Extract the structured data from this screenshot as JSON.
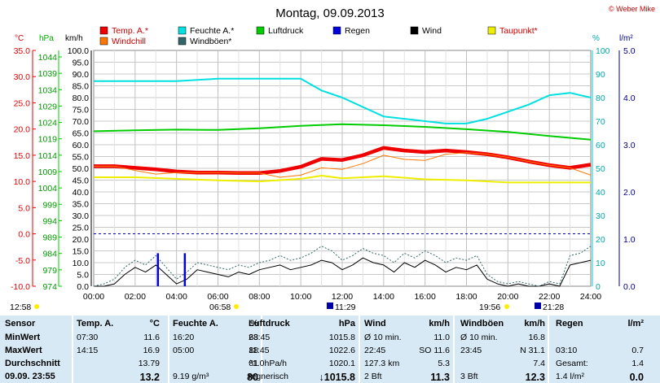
{
  "chart_data": {
    "type": "line",
    "title": "Montag, 09.09.2013",
    "credit": "© Weber Mike",
    "units_left": [
      "°C",
      "hPa",
      "km/h"
    ],
    "units_right": [
      "%",
      "l/m²"
    ],
    "temp_ticks": [
      "35.0",
      "30.0",
      "25.0",
      "20.0",
      "15.0",
      "10.0",
      "5.0",
      "0.0",
      "-5.0",
      "-10.0"
    ],
    "hpa_ticks": [
      "1044",
      "1039",
      "1034",
      "1029",
      "1024",
      "1019",
      "1014",
      "1009",
      "1004",
      "999",
      "994",
      "989",
      "984",
      "979",
      "974"
    ],
    "kmh_ticks": [
      "100.0",
      "95.0",
      "90.0",
      "85.0",
      "80.0",
      "75.0",
      "70.0",
      "65.0",
      "60.0",
      "55.0",
      "50.0",
      "45.0",
      "40.0",
      "35.0",
      "30.0",
      "25.0",
      "20.0",
      "15.0",
      "10.0",
      "5.0",
      "0.0"
    ],
    "pct_ticks": [
      "100",
      "90",
      "80",
      "70",
      "60",
      "50",
      "40",
      "30",
      "20",
      "10",
      "0"
    ],
    "rain_ticks": [
      "5.0",
      "4.0",
      "3.0",
      "2.0",
      "1.0",
      "0.0"
    ],
    "x_ticks": [
      "00:00",
      "02:00",
      "04:00",
      "06:00",
      "08:00",
      "10:00",
      "12:00",
      "14:00",
      "16:00",
      "18:00",
      "20:00",
      "22:00",
      "24:00"
    ],
    "xlim": [
      0,
      24
    ],
    "legend": [
      {
        "label": "Temp. A.*",
        "color": "#ee0000"
      },
      {
        "label": "Feuchte A.*",
        "color": "#00e0e0"
      },
      {
        "label": "Luftdruck",
        "color": "#00cc00"
      },
      {
        "label": "Regen",
        "color": "#0000dd"
      },
      {
        "label": "Wind",
        "color": "#000000"
      },
      {
        "label": "Taupunkt*",
        "color": "#eeee00"
      },
      {
        "label": "Windchill",
        "color": "#ff7700"
      },
      {
        "label": "Windböen*",
        "color": "#336666"
      }
    ],
    "sun_markers": [
      "12:58",
      "06:58",
      "11:29",
      "19:56",
      "21:28"
    ],
    "series": [
      {
        "name": "Temp. A.*",
        "axis": "temp",
        "color": "#ee0000",
        "x": [
          0,
          1,
          2,
          3,
          4,
          5,
          6,
          7,
          8,
          9,
          10,
          11,
          12,
          13,
          14,
          15,
          16,
          17,
          18,
          19,
          20,
          21,
          22,
          23,
          24
        ],
        "y": [
          12.9,
          12.9,
          12.6,
          12.3,
          11.9,
          11.7,
          11.7,
          11.6,
          11.6,
          12.0,
          12.8,
          14.3,
          14.1,
          15.0,
          16.4,
          15.9,
          15.6,
          15.9,
          15.6,
          15.2,
          14.6,
          13.8,
          13.1,
          12.6,
          13.2
        ]
      },
      {
        "name": "Windchill",
        "axis": "temp",
        "color": "#ff7700",
        "x": [
          0,
          1,
          2,
          3,
          4,
          5,
          6,
          7,
          8,
          9,
          10,
          11,
          12,
          13,
          14,
          15,
          16,
          17,
          18,
          19,
          20,
          21,
          22,
          23,
          24
        ],
        "y": [
          12.9,
          12.9,
          12.1,
          11.4,
          11.7,
          11.7,
          11.7,
          11.6,
          11.6,
          10.8,
          11.2,
          12.6,
          12.3,
          13.4,
          15.0,
          14.2,
          14.0,
          15.2,
          15.5,
          15.2,
          14.6,
          13.8,
          13.1,
          12.6,
          11.2
        ]
      },
      {
        "name": "Taupunkt*",
        "axis": "temp",
        "color": "#eeee00",
        "x": [
          0,
          2,
          4,
          6,
          8,
          10,
          11,
          12,
          14,
          16,
          18,
          20,
          22,
          24
        ],
        "y": [
          10.8,
          10.8,
          10.5,
          10.2,
          10.0,
          10.5,
          11.1,
          10.6,
          11.0,
          10.4,
          10.2,
          9.8,
          9.8,
          9.8
        ]
      },
      {
        "name": "Feuchte A.*",
        "axis": "pct",
        "color": "#00e0e0",
        "x": [
          0,
          2,
          4,
          6,
          8,
          10,
          11,
          12,
          13,
          14,
          15,
          16,
          17,
          18,
          19,
          20,
          21,
          22,
          23,
          24
        ],
        "y": [
          87,
          87,
          87,
          88,
          88,
          88,
          83,
          80,
          76,
          72,
          71,
          70,
          69,
          69,
          71,
          74,
          77,
          81,
          82,
          80
        ]
      },
      {
        "name": "Luftdruck",
        "axis": "hpa",
        "color": "#00cc00",
        "x": [
          0,
          2,
          4,
          6,
          8,
          10,
          12,
          14,
          16,
          18,
          20,
          22,
          24
        ],
        "y": [
          1020.0,
          1020.3,
          1020.5,
          1020.4,
          1020.9,
          1021.6,
          1022.1,
          1021.8,
          1021.3,
          1020.6,
          1019.8,
          1018.6,
          1017.5
        ]
      },
      {
        "name": "Wind",
        "axis": "kmh",
        "color": "#000000",
        "x": [
          0,
          0.5,
          1,
          1.5,
          2,
          2.5,
          3,
          3.5,
          4,
          4.5,
          5,
          5.5,
          6,
          6.5,
          7,
          7.5,
          8,
          8.5,
          9,
          9.5,
          10,
          10.5,
          11,
          11.5,
          12,
          12.5,
          13,
          13.5,
          14,
          14.5,
          15,
          15.5,
          16,
          16.5,
          17,
          17.5,
          18,
          18.5,
          19,
          19.5,
          20,
          20.5,
          21,
          21.5,
          22,
          22.5,
          23,
          23.5,
          24
        ],
        "y": [
          0,
          0,
          1,
          5,
          8,
          6,
          9,
          5,
          1,
          3,
          7,
          6,
          5,
          4,
          6,
          5,
          7,
          8,
          9,
          7,
          8,
          9,
          11,
          10,
          7,
          9,
          12,
          10,
          9,
          6,
          10,
          8,
          11,
          9,
          6,
          8,
          7,
          9,
          3,
          1,
          0,
          1,
          0,
          0,
          1,
          0,
          9,
          10,
          11
        ]
      },
      {
        "name": "Windböen*",
        "axis": "kmh",
        "color": "#336666",
        "x": [
          0,
          0.5,
          1,
          1.5,
          2,
          2.5,
          3,
          3.5,
          4,
          4.5,
          5,
          5.5,
          6,
          6.5,
          7,
          7.5,
          8,
          8.5,
          9,
          9.5,
          10,
          10.5,
          11,
          11.5,
          12,
          12.5,
          13,
          13.5,
          14,
          14.5,
          15,
          15.5,
          16,
          16.5,
          17,
          17.5,
          18,
          18.5,
          19,
          19.5,
          20,
          20.5,
          21,
          21.5,
          22,
          22.5,
          23,
          23.5,
          24
        ],
        "y": [
          0,
          1,
          3,
          8,
          11,
          9,
          13,
          8,
          3,
          6,
          10,
          9,
          8,
          7,
          9,
          8,
          10,
          11,
          13,
          11,
          12,
          14,
          17,
          15,
          11,
          13,
          16,
          14,
          13,
          10,
          14,
          12,
          15,
          13,
          10,
          12,
          11,
          13,
          5,
          2,
          1,
          2,
          1,
          0,
          2,
          1,
          13,
          14,
          17
        ]
      },
      {
        "name": "Regen",
        "axis": "rain",
        "color": "#0000dd",
        "x": [
          3.1,
          4.4
        ],
        "y": [
          0.7,
          0.7
        ]
      }
    ]
  },
  "table": {
    "headers": [
      "Sensor",
      "Temp. A.",
      "°C",
      "Feuchte A.",
      "%",
      "Luftdruck",
      "hPa",
      "Wind",
      "km/h",
      "Windböen",
      "km/h",
      "Regen",
      "l/m²"
    ],
    "rows": [
      [
        "MinWert",
        "07:30",
        "11.6",
        "16:20",
        "68",
        "23:45",
        "1015.8",
        "Ø 10 min.",
        "11.0",
        "Ø 10 min.",
        "16.8",
        "",
        ""
      ],
      [
        "MaxWert",
        "14:15",
        "16.9",
        "05:00",
        "88",
        "11:45",
        "1022.6",
        "22:45",
        "SO 11.6",
        "23:45",
        "N 31.1",
        "03:10",
        "0.7"
      ],
      [
        "Durchschnitt",
        "",
        "13.79",
        "",
        "81",
        "^1.0hPa/h",
        "1020.1",
        "127.3 km",
        "5.3",
        "",
        "7.4",
        "Gesamt:",
        "1.4"
      ],
      [
        "09.09. 23:55",
        "",
        "13.2",
        "9.19 g/m³",
        "80",
        "regnerisch",
        "↓1015.8",
        "2 Bft",
        "11.3",
        "3 Bft",
        "12.3",
        "1.4 l/m²",
        "0.0"
      ]
    ]
  }
}
